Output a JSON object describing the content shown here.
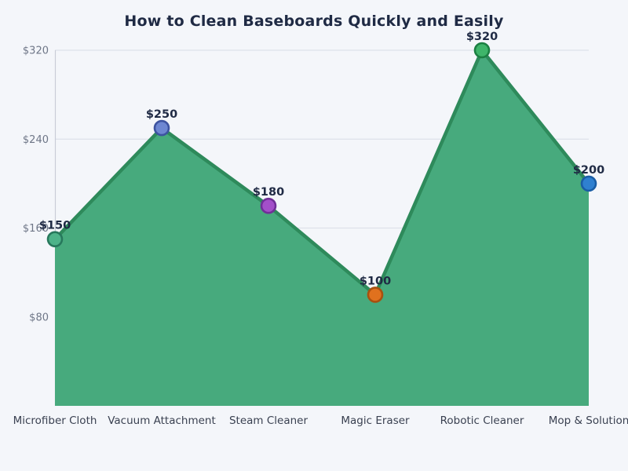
{
  "chart_data": {
    "type": "area",
    "title": "How to Clean Baseboards Quickly and Easily",
    "categories": [
      "Microfiber Cloth",
      "Vacuum Attachment",
      "Steam Cleaner",
      "Magic Eraser",
      "Robotic Cleaner",
      "Mop & Solution"
    ],
    "values": [
      150,
      250,
      180,
      100,
      320,
      200
    ],
    "data_labels": [
      "$150",
      "$250",
      "$180",
      "$100",
      "$320",
      "$200"
    ],
    "xlabel": "",
    "ylabel": "",
    "ylim": [
      0,
      320
    ],
    "y_ticks": [
      80,
      160,
      240,
      320
    ],
    "y_tick_labels": [
      "$80",
      "$160",
      "$240",
      "$320"
    ],
    "grid": true,
    "legend": "none",
    "colors": {
      "background": "#f4f6fa",
      "area_fill": "#47aa7d",
      "line": "#2e8a5b",
      "title": "#1f2a44",
      "data_label": "#1f2a44",
      "tick_label": "#6e7687",
      "category_label": "#3a4151",
      "gridline": "#dde1ea",
      "axis_line": "#c9cdd8",
      "points": [
        {
          "fill": "#4db389",
          "stroke": "#27785c"
        },
        {
          "fill": "#6e87d2",
          "stroke": "#3d53a0"
        },
        {
          "fill": "#a34fc9",
          "stroke": "#702f97"
        },
        {
          "fill": "#e0711e",
          "stroke": "#a8500f"
        },
        {
          "fill": "#3fb56a",
          "stroke": "#1c7f42"
        },
        {
          "fill": "#2f80d0",
          "stroke": "#1a5da5"
        }
      ]
    }
  }
}
